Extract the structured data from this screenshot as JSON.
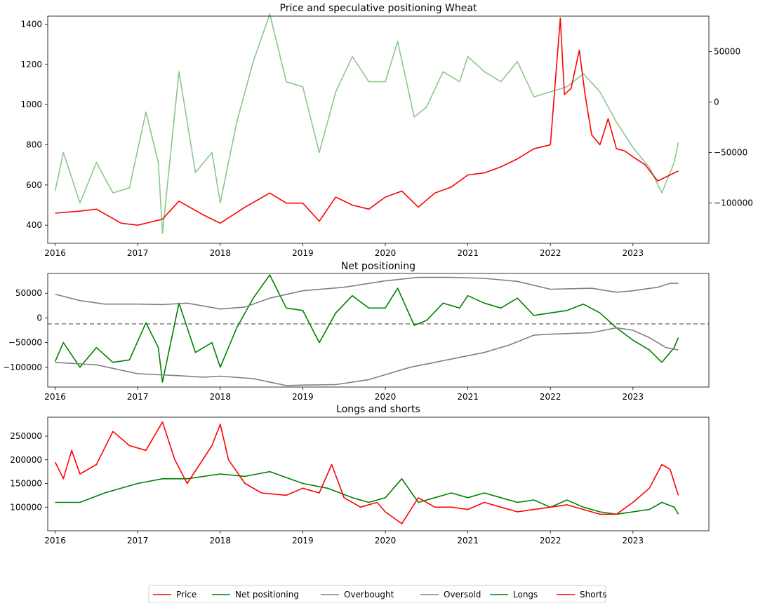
{
  "legend": {
    "entries": [
      {
        "label": "Price",
        "color": "#ff0000"
      },
      {
        "label": "Net positioning",
        "color": "#008000"
      },
      {
        "label": "Overbought",
        "color": "#808080"
      },
      {
        "label": "Oversold",
        "color": "#808080"
      },
      {
        "label": "Longs",
        "color": "#008000"
      },
      {
        "label": "Shorts",
        "color": "#ff0000"
      }
    ]
  },
  "chart_data": [
    {
      "type": "line",
      "title": "Price and speculative positioning Wheat",
      "x_tick_labels": [
        "2016",
        "2017",
        "2018",
        "2019",
        "2020",
        "2021",
        "2022",
        "2023"
      ],
      "xlim": [
        2015.91,
        2023.92
      ],
      "y_left": {
        "ticks": [
          400,
          600,
          800,
          1000,
          1200,
          1400
        ],
        "tick_labels": [
          "400",
          "600",
          "800",
          "1000",
          "1200",
          "1400"
        ],
        "ylim": [
          310,
          1440
        ]
      },
      "y_right": {
        "ticks": [
          -100000,
          -50000,
          0,
          50000
        ],
        "tick_labels": [
          "−100000",
          "−50000",
          "0",
          "50000"
        ],
        "ylim": [
          -140000,
          85000
        ]
      },
      "series": [
        {
          "name": "Price",
          "axis": "left",
          "color": "#ff0000",
          "alpha": 1,
          "x": [
            2016.0,
            2016.3,
            2016.5,
            2016.8,
            2017.0,
            2017.3,
            2017.5,
            2017.8,
            2018.0,
            2018.3,
            2018.6,
            2018.8,
            2019.0,
            2019.2,
            2019.4,
            2019.6,
            2019.8,
            2020.0,
            2020.2,
            2020.4,
            2020.6,
            2020.8,
            2021.0,
            2021.2,
            2021.4,
            2021.6,
            2021.8,
            2022.0,
            2022.12,
            2022.17,
            2022.25,
            2022.35,
            2022.42,
            2022.5,
            2022.6,
            2022.7,
            2022.8,
            2022.9,
            2023.0,
            2023.15,
            2023.3,
            2023.45,
            2023.55
          ],
          "y": [
            460,
            470,
            480,
            410,
            400,
            430,
            520,
            450,
            410,
            490,
            560,
            510,
            510,
            420,
            540,
            500,
            480,
            540,
            570,
            490,
            560,
            590,
            650,
            660,
            690,
            730,
            780,
            800,
            1430,
            1050,
            1080,
            1270,
            1050,
            850,
            800,
            930,
            780,
            770,
            740,
            700,
            620,
            650,
            670
          ]
        },
        {
          "name": "Net positioning",
          "axis": "right",
          "color": "#008000",
          "alpha": 0.45,
          "x": [
            2016.0,
            2016.1,
            2016.3,
            2016.5,
            2016.7,
            2016.9,
            2017.1,
            2017.25,
            2017.3,
            2017.5,
            2017.7,
            2017.9,
            2018.0,
            2018.2,
            2018.4,
            2018.6,
            2018.8,
            2019.0,
            2019.2,
            2019.4,
            2019.6,
            2019.8,
            2020.0,
            2020.15,
            2020.35,
            2020.5,
            2020.7,
            2020.9,
            2021.0,
            2021.2,
            2021.4,
            2021.6,
            2021.8,
            2022.0,
            2022.2,
            2022.4,
            2022.6,
            2022.8,
            2023.0,
            2023.2,
            2023.35,
            2023.5,
            2023.55
          ],
          "y": [
            -88000,
            -50000,
            -100000,
            -60000,
            -90000,
            -85000,
            -10000,
            -60000,
            -130000,
            30000,
            -70000,
            -50000,
            -100000,
            -20000,
            40000,
            87000,
            20000,
            15000,
            -50000,
            10000,
            45000,
            20000,
            20000,
            60000,
            -15000,
            -5000,
            30000,
            20000,
            45000,
            30000,
            20000,
            40000,
            5000,
            10000,
            15000,
            28000,
            10000,
            -20000,
            -45000,
            -65000,
            -90000,
            -60000,
            -40000
          ]
        }
      ]
    },
    {
      "type": "line",
      "title": "Net positioning",
      "x_tick_labels": [
        "2016",
        "2017",
        "2018",
        "2019",
        "2020",
        "2021",
        "2022",
        "2023"
      ],
      "xlim": [
        2015.91,
        2023.92
      ],
      "y_left": {
        "ticks": [
          -100000,
          -50000,
          0,
          50000
        ],
        "tick_labels": [
          "−100000",
          "−50000",
          "0",
          "50000"
        ],
        "ylim": [
          -140000,
          90000
        ]
      },
      "hline": {
        "y": -12000,
        "style": "dashed",
        "color": "#808080"
      },
      "series": [
        {
          "name": "Net positioning",
          "color": "#008000",
          "x": [
            2016.0,
            2016.1,
            2016.3,
            2016.5,
            2016.7,
            2016.9,
            2017.1,
            2017.25,
            2017.3,
            2017.5,
            2017.7,
            2017.9,
            2018.0,
            2018.2,
            2018.4,
            2018.6,
            2018.8,
            2019.0,
            2019.2,
            2019.4,
            2019.6,
            2019.8,
            2020.0,
            2020.15,
            2020.35,
            2020.5,
            2020.7,
            2020.9,
            2021.0,
            2021.2,
            2021.4,
            2021.6,
            2021.8,
            2022.0,
            2022.2,
            2022.4,
            2022.6,
            2022.8,
            2023.0,
            2023.2,
            2023.35,
            2023.5,
            2023.55
          ],
          "y": [
            -88000,
            -50000,
            -100000,
            -60000,
            -90000,
            -85000,
            -10000,
            -60000,
            -130000,
            30000,
            -70000,
            -50000,
            -100000,
            -20000,
            40000,
            87000,
            20000,
            15000,
            -50000,
            10000,
            45000,
            20000,
            20000,
            60000,
            -15000,
            -5000,
            30000,
            20000,
            45000,
            30000,
            20000,
            40000,
            5000,
            10000,
            15000,
            28000,
            10000,
            -20000,
            -45000,
            -65000,
            -90000,
            -60000,
            -40000
          ]
        },
        {
          "name": "Overbought",
          "color": "#808080",
          "x": [
            2016.0,
            2016.3,
            2016.6,
            2017.0,
            2017.3,
            2017.6,
            2018.0,
            2018.3,
            2018.6,
            2019.0,
            2019.5,
            2020.0,
            2020.4,
            2020.8,
            2021.2,
            2021.6,
            2022.0,
            2022.5,
            2022.8,
            2023.0,
            2023.3,
            2023.45,
            2023.55
          ],
          "y": [
            48000,
            35000,
            28000,
            28000,
            27000,
            30000,
            18000,
            22000,
            40000,
            55000,
            62000,
            75000,
            82000,
            82000,
            80000,
            74000,
            58000,
            60000,
            52000,
            55000,
            62000,
            70000,
            70000
          ]
        },
        {
          "name": "Oversold",
          "color": "#808080",
          "x": [
            2016.0,
            2016.5,
            2017.0,
            2017.5,
            2017.8,
            2018.0,
            2018.4,
            2018.8,
            2019.0,
            2019.4,
            2019.8,
            2020.0,
            2020.3,
            2020.6,
            2020.9,
            2021.2,
            2021.5,
            2021.8,
            2022.0,
            2022.5,
            2022.8,
            2023.0,
            2023.2,
            2023.4,
            2023.55
          ],
          "y": [
            -90000,
            -95000,
            -113000,
            -117000,
            -120000,
            -118000,
            -123000,
            -137000,
            -136000,
            -135000,
            -125000,
            -115000,
            -100000,
            -90000,
            -80000,
            -70000,
            -55000,
            -35000,
            -33000,
            -30000,
            -20000,
            -25000,
            -40000,
            -60000,
            -65000
          ]
        }
      ]
    },
    {
      "type": "line",
      "title": "Longs and shorts",
      "x_tick_labels": [
        "2016",
        "2017",
        "2018",
        "2019",
        "2020",
        "2021",
        "2022",
        "2023"
      ],
      "xlim": [
        2015.91,
        2023.92
      ],
      "y_left": {
        "ticks": [
          100000,
          150000,
          200000,
          250000
        ],
        "tick_labels": [
          "100000",
          "150000",
          "200000",
          "250000"
        ],
        "ylim": [
          50000,
          290000
        ]
      },
      "series": [
        {
          "name": "Longs",
          "color": "#008000",
          "x": [
            2016.0,
            2016.3,
            2016.6,
            2017.0,
            2017.3,
            2017.6,
            2018.0,
            2018.3,
            2018.6,
            2019.0,
            2019.3,
            2019.6,
            2019.8,
            2020.0,
            2020.2,
            2020.4,
            2020.6,
            2020.8,
            2021.0,
            2021.2,
            2021.4,
            2021.6,
            2021.8,
            2022.0,
            2022.2,
            2022.4,
            2022.6,
            2022.8,
            2023.0,
            2023.2,
            2023.35,
            2023.5,
            2023.55
          ],
          "y": [
            110000,
            110000,
            130000,
            150000,
            160000,
            160000,
            170000,
            165000,
            175000,
            150000,
            140000,
            120000,
            110000,
            120000,
            160000,
            110000,
            120000,
            130000,
            120000,
            130000,
            120000,
            110000,
            115000,
            100000,
            115000,
            100000,
            90000,
            85000,
            90000,
            95000,
            110000,
            100000,
            85000
          ]
        },
        {
          "name": "Shorts",
          "color": "#ff0000",
          "x": [
            2016.0,
            2016.1,
            2016.2,
            2016.3,
            2016.5,
            2016.7,
            2016.9,
            2017.1,
            2017.3,
            2017.45,
            2017.6,
            2017.9,
            2018.0,
            2018.1,
            2018.3,
            2018.5,
            2018.8,
            2019.0,
            2019.2,
            2019.35,
            2019.5,
            2019.7,
            2019.9,
            2020.0,
            2020.2,
            2020.4,
            2020.6,
            2020.8,
            2021.0,
            2021.2,
            2021.4,
            2021.6,
            2021.8,
            2022.0,
            2022.2,
            2022.4,
            2022.6,
            2022.8,
            2023.0,
            2023.2,
            2023.35,
            2023.45,
            2023.55
          ],
          "y": [
            195000,
            160000,
            220000,
            170000,
            190000,
            260000,
            230000,
            220000,
            280000,
            200000,
            150000,
            230000,
            275000,
            200000,
            150000,
            130000,
            125000,
            140000,
            130000,
            190000,
            120000,
            100000,
            110000,
            90000,
            65000,
            120000,
            100000,
            100000,
            95000,
            110000,
            100000,
            90000,
            95000,
            100000,
            105000,
            95000,
            85000,
            85000,
            110000,
            140000,
            190000,
            180000,
            125000
          ]
        }
      ]
    }
  ]
}
